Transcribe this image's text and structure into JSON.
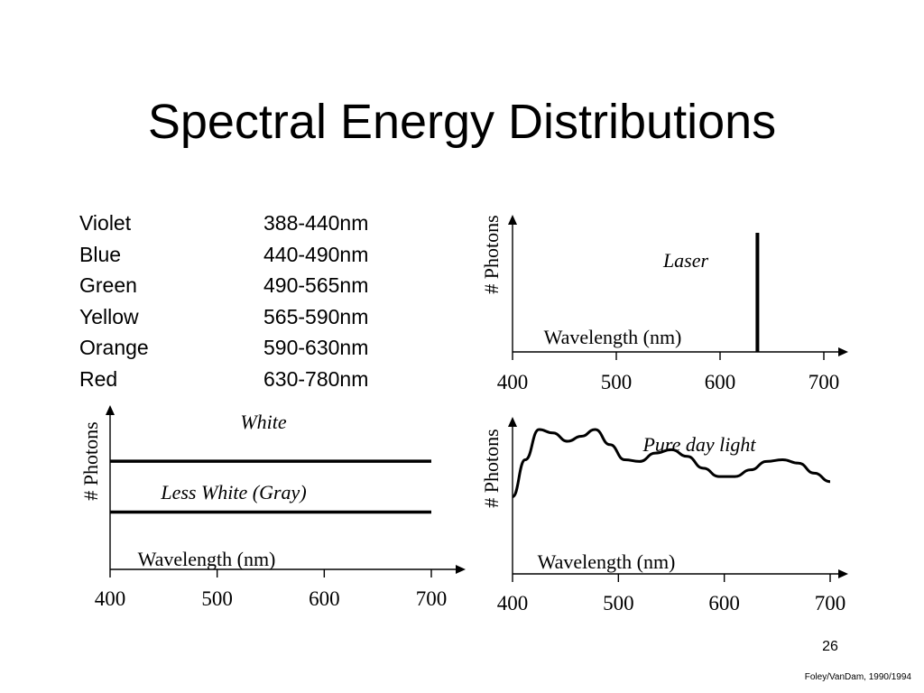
{
  "slide": {
    "title": "Spectral Energy Distributions",
    "page_number": "26",
    "credit": "Foley/VanDam, 1990/1994"
  },
  "color_bands": [
    {
      "name": "Violet",
      "range": "388-440nm"
    },
    {
      "name": "Blue",
      "range": "440-490nm"
    },
    {
      "name": "Green",
      "range": "490-565nm"
    },
    {
      "name": "Yellow",
      "range": "565-590nm"
    },
    {
      "name": "Orange",
      "range": "590-630nm"
    },
    {
      "name": "Red",
      "range": "630-780nm"
    }
  ],
  "chart_data": [
    {
      "id": "laser",
      "type": "line",
      "title": "",
      "xlabel": "Wavelength (nm)",
      "ylabel": "# Photons",
      "x_ticks": [
        400,
        500,
        600,
        700
      ],
      "xlim": [
        400,
        700
      ],
      "ylim": [
        0,
        1
      ],
      "annotations": [
        {
          "text": "Laser",
          "series": "laser"
        }
      ],
      "series": [
        {
          "key": "laser",
          "x": [
            636,
            636
          ],
          "y": [
            0,
            1
          ]
        }
      ]
    },
    {
      "id": "white",
      "type": "line",
      "title": "",
      "xlabel": "Wavelength (nm)",
      "ylabel": "# Photons",
      "x_ticks": [
        400,
        500,
        600,
        700
      ],
      "xlim": [
        400,
        700
      ],
      "ylim": [
        0,
        1
      ],
      "annotations": [
        {
          "text": "White",
          "series": "white"
        },
        {
          "text": "Less White (Gray)",
          "series": "gray"
        }
      ],
      "series": [
        {
          "key": "white",
          "x": [
            400,
            700
          ],
          "y": [
            0.85,
            0.85
          ]
        },
        {
          "key": "gray",
          "x": [
            400,
            700
          ],
          "y": [
            0.45,
            0.45
          ]
        }
      ]
    },
    {
      "id": "daylight",
      "type": "line",
      "title": "",
      "xlabel": "Wavelength (nm)",
      "ylabel": "# Photons",
      "x_ticks": [
        400,
        500,
        600,
        700
      ],
      "xlim": [
        400,
        700
      ],
      "ylim": [
        0,
        1
      ],
      "annotations": [
        {
          "text": "Pure day light",
          "series": "daylight"
        }
      ],
      "series": [
        {
          "key": "daylight",
          "x": [
            400,
            412,
            425,
            438,
            452,
            465,
            478,
            492,
            506,
            520,
            535,
            550,
            565,
            580,
            595,
            610,
            625,
            640,
            655,
            670,
            685,
            700
          ],
          "y": [
            0.46,
            0.68,
            0.86,
            0.84,
            0.79,
            0.82,
            0.86,
            0.77,
            0.68,
            0.67,
            0.72,
            0.74,
            0.7,
            0.63,
            0.58,
            0.58,
            0.62,
            0.67,
            0.68,
            0.66,
            0.6,
            0.55
          ]
        }
      ]
    }
  ]
}
